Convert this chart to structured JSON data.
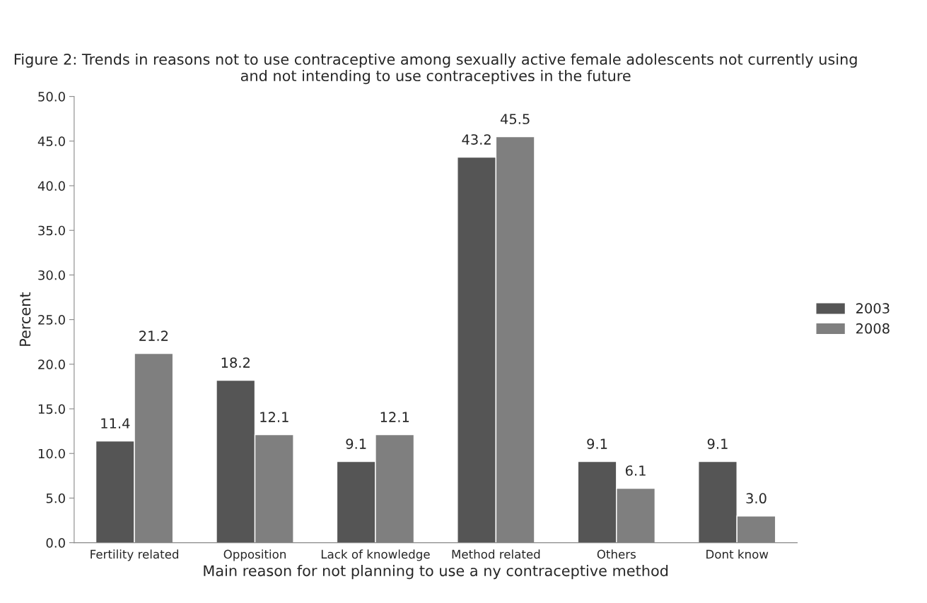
{
  "chart_data": {
    "type": "bar",
    "title": "Figure 2: Trends in reasons not to use contraceptive among sexually active female adolescents not currently using and not intending to use contraceptives in the future",
    "xlabel": "Main reason for not planning to use a ny contraceptive method",
    "ylabel": "Percent",
    "categories": [
      "Fertility related",
      "Opposition",
      "Lack of knowledge",
      "Method related",
      "Others",
      "Dont know"
    ],
    "series": [
      {
        "name": "2003",
        "color": "#555555",
        "values": [
          11.4,
          18.2,
          9.1,
          43.2,
          9.1,
          9.1
        ],
        "value_labels": [
          "11.4",
          "18.2",
          "9.1",
          "43.2",
          "9.1",
          "9.1"
        ]
      },
      {
        "name": "2008",
        "color": "#7f7f7f",
        "values": [
          21.2,
          12.1,
          12.1,
          45.5,
          6.1,
          3.0
        ],
        "value_labels": [
          "21.2",
          "12.1",
          "12.1",
          "45.5",
          "6.1",
          "3.0"
        ]
      }
    ],
    "ylim": [
      0,
      50
    ],
    "yticks": [
      {
        "value": 0,
        "label": "0.0"
      },
      {
        "value": 5,
        "label": "5.0"
      },
      {
        "value": 10,
        "label": "10.0"
      },
      {
        "value": 15,
        "label": "15.0"
      },
      {
        "value": 20,
        "label": "20.0"
      },
      {
        "value": 25,
        "label": "25.0"
      },
      {
        "value": 30,
        "label": "30.0"
      },
      {
        "value": 35,
        "label": "35.0"
      },
      {
        "value": 40,
        "label": "40.0"
      },
      {
        "value": 45,
        "label": "45.0"
      },
      {
        "value": 50,
        "label": "50.0"
      }
    ],
    "grid": false,
    "legend": "right"
  }
}
